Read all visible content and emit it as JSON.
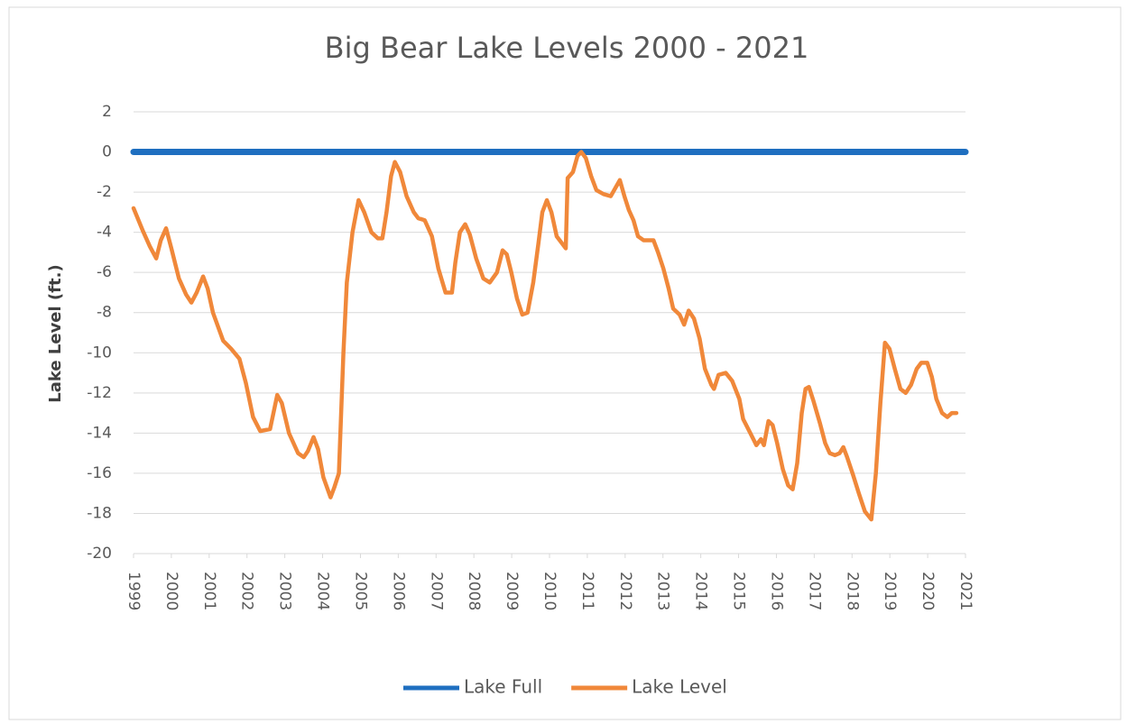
{
  "chart_data": {
    "type": "line",
    "title": "Big Bear Lake Levels 2000 - 2021",
    "y_label": "Lake Level (ft.)",
    "xlim": [
      1999,
      2021
    ],
    "xticks": [
      1999,
      2000,
      2001,
      2002,
      2003,
      2004,
      2005,
      2006,
      2007,
      2008,
      2009,
      2010,
      2011,
      2012,
      2013,
      2014,
      2015,
      2016,
      2017,
      2018,
      2019,
      2020,
      2021
    ],
    "ylim": [
      -20,
      2
    ],
    "yticks": [
      -20,
      -18,
      -16,
      -14,
      -12,
      -10,
      -8,
      -6,
      -4,
      -2,
      0,
      2
    ],
    "grid": true,
    "legend": "bottom",
    "series": [
      {
        "name": "Lake Full",
        "color": "#1f6fc0",
        "x": [
          1999,
          2021
        ],
        "values": [
          0,
          0
        ]
      },
      {
        "name": "Lake Level",
        "color": "#f0883a",
        "x": [
          1999.0,
          1999.24,
          1999.43,
          1999.6,
          1999.72,
          1999.86,
          2000.0,
          2000.2,
          2000.39,
          2000.53,
          2000.67,
          2000.84,
          2000.96,
          2001.1,
          2001.37,
          2001.58,
          2001.8,
          2001.97,
          2002.16,
          2002.35,
          2002.61,
          2002.8,
          2002.92,
          2003.11,
          2003.35,
          2003.5,
          2003.61,
          2003.76,
          2003.88,
          2004.02,
          2004.21,
          2004.31,
          2004.43,
          2004.55,
          2004.64,
          2004.79,
          2004.95,
          2005.1,
          2005.29,
          2005.46,
          2005.58,
          2005.69,
          2005.81,
          2005.91,
          2006.05,
          2006.22,
          2006.41,
          2006.53,
          2006.7,
          2006.89,
          2007.06,
          2007.25,
          2007.42,
          2007.51,
          2007.63,
          2007.77,
          2007.89,
          2008.06,
          2008.25,
          2008.42,
          2008.61,
          2008.76,
          2008.87,
          2008.99,
          2009.14,
          2009.28,
          2009.42,
          2009.57,
          2009.71,
          2009.81,
          2009.93,
          2010.05,
          2010.19,
          2010.43,
          2010.48,
          2010.62,
          2010.74,
          2010.84,
          2010.96,
          2011.1,
          2011.24,
          2011.43,
          2011.62,
          2011.74,
          2011.86,
          2011.98,
          2012.1,
          2012.22,
          2012.34,
          2012.49,
          2012.63,
          2012.75,
          2012.87,
          2013.01,
          2013.15,
          2013.27,
          2013.44,
          2013.56,
          2013.68,
          2013.82,
          2013.97,
          2014.11,
          2014.28,
          2014.35,
          2014.47,
          2014.66,
          2014.83,
          2015.02,
          2015.12,
          2015.31,
          2015.47,
          2015.59,
          2015.67,
          2015.79,
          2015.9,
          2016.02,
          2016.17,
          2016.31,
          2016.43,
          2016.55,
          2016.67,
          2016.77,
          2016.86,
          2016.98,
          2017.15,
          2017.29,
          2017.41,
          2017.55,
          2017.67,
          2017.77,
          2017.87,
          2018.03,
          2018.18,
          2018.34,
          2018.51,
          2018.63,
          2018.75,
          2018.87,
          2018.99,
          2019.13,
          2019.28,
          2019.42,
          2019.56,
          2019.71,
          2019.83,
          2019.99,
          2020.11,
          2020.23,
          2020.38,
          2020.52,
          2020.64,
          2020.76
        ],
        "values": [
          -2.8,
          -3.9,
          -4.7,
          -5.3,
          -4.4,
          -3.8,
          -4.8,
          -6.3,
          -7.1,
          -7.5,
          -7.0,
          -6.2,
          -6.8,
          -8.0,
          -9.4,
          -9.8,
          -10.3,
          -11.5,
          -13.2,
          -13.9,
          -13.8,
          -12.1,
          -12.5,
          -14.0,
          -15.0,
          -15.2,
          -14.9,
          -14.2,
          -14.8,
          -16.2,
          -17.2,
          -16.7,
          -16.0,
          -10.0,
          -6.5,
          -4.0,
          -2.4,
          -3.0,
          -4.0,
          -4.3,
          -4.3,
          -3.0,
          -1.2,
          -0.5,
          -1.0,
          -2.2,
          -3.0,
          -3.3,
          -3.4,
          -4.2,
          -5.8,
          -7.0,
          -7.0,
          -5.5,
          -4.0,
          -3.6,
          -4.1,
          -5.3,
          -6.3,
          -6.5,
          -6.0,
          -4.9,
          -5.1,
          -6.0,
          -7.3,
          -8.1,
          -8.0,
          -6.5,
          -4.5,
          -3.0,
          -2.4,
          -3.0,
          -4.2,
          -4.8,
          -1.3,
          -1.0,
          -0.2,
          0.0,
          -0.3,
          -1.2,
          -1.9,
          -2.1,
          -2.2,
          -1.8,
          -1.4,
          -2.2,
          -2.9,
          -3.4,
          -4.2,
          -4.4,
          -4.4,
          -4.4,
          -5.0,
          -5.8,
          -6.8,
          -7.8,
          -8.1,
          -8.6,
          -7.9,
          -8.3,
          -9.3,
          -10.8,
          -11.6,
          -11.8,
          -11.1,
          -11.0,
          -11.4,
          -12.3,
          -13.3,
          -14.0,
          -14.6,
          -14.3,
          -14.6,
          -13.4,
          -13.6,
          -14.5,
          -15.8,
          -16.6,
          -16.8,
          -15.5,
          -13.0,
          -11.8,
          -11.7,
          -12.4,
          -13.5,
          -14.5,
          -15.0,
          -15.1,
          -15.0,
          -14.7,
          -15.2,
          -16.1,
          -17.0,
          -17.9,
          -18.3,
          -16.0,
          -12.5,
          -9.5,
          -9.8,
          -10.8,
          -11.8,
          -12.0,
          -11.6,
          -10.8,
          -10.5,
          -10.5,
          -11.2,
          -12.3,
          -13.0,
          -13.2,
          -13.0,
          -13.0
        ]
      }
    ]
  }
}
